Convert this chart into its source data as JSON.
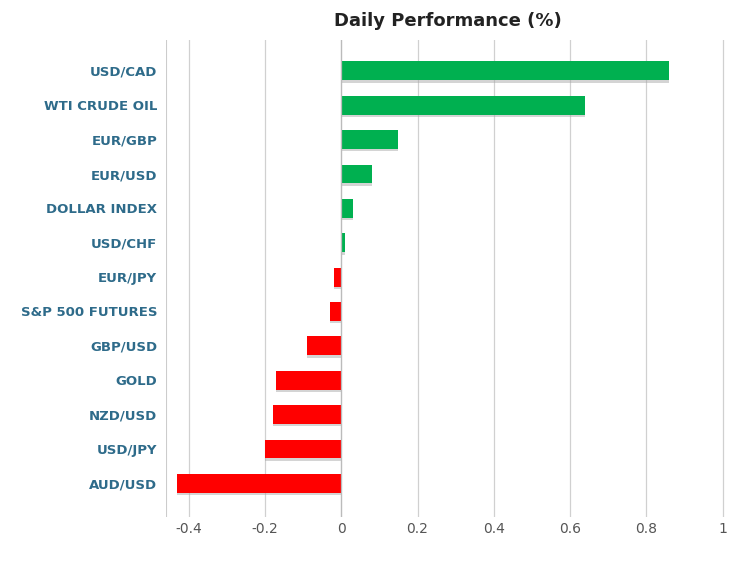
{
  "categories": [
    "USD/CAD",
    "WTI CRUDE OIL",
    "EUR/GBP",
    "EUR/USD",
    "DOLLAR INDEX",
    "USD/CHF",
    "EUR/JPY",
    "S&P 500 FUTURES",
    "GBP/USD",
    "GOLD",
    "NZD/USD",
    "USD/JPY",
    "AUD/USD"
  ],
  "values": [
    0.86,
    0.64,
    0.15,
    0.08,
    0.03,
    0.01,
    -0.02,
    -0.03,
    -0.09,
    -0.17,
    -0.18,
    -0.2,
    -0.43
  ],
  "bar_colors_pos": "#00b050",
  "bar_colors_neg": "#ff0000",
  "title": "Daily Performance (%)",
  "title_fontsize": 13,
  "xlim": [
    -0.46,
    1.02
  ],
  "xticks": [
    -0.4,
    -0.2,
    0.0,
    0.2,
    0.4,
    0.6,
    0.8,
    1.0
  ],
  "background_color": "#ffffff",
  "plot_bg_color": "#ffffff",
  "label_color": "#2e6b8a",
  "grid_color": "#d0d0d0",
  "tick_label_color": "#555555"
}
